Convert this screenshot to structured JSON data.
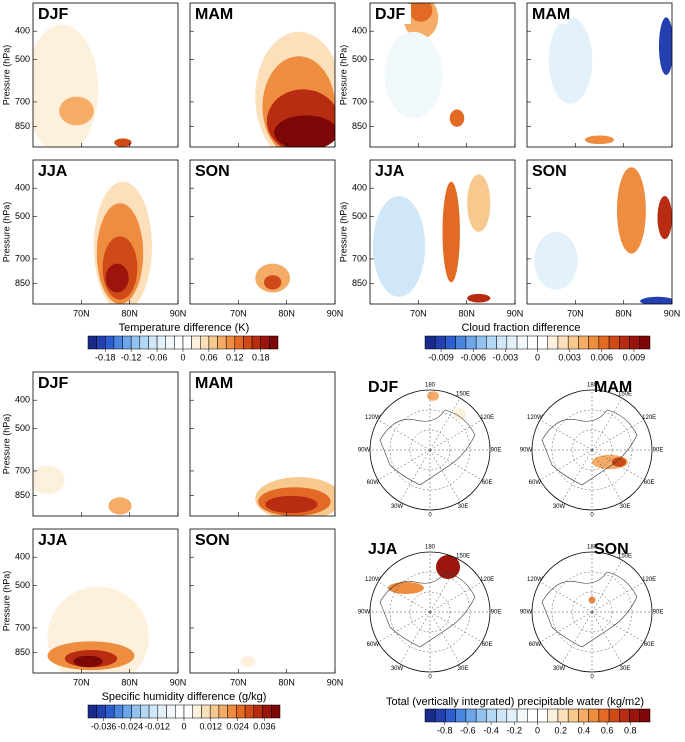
{
  "pressure_axis": {
    "label": "Pressure (hPa)",
    "ticks": [
      400,
      500,
      700,
      850
    ],
    "lim": [
      1000,
      320
    ],
    "log": true
  },
  "lat_axis": {
    "ticks": [
      {
        "value": 70,
        "label": "70N"
      },
      {
        "value": 80,
        "label": "80N"
      },
      {
        "value": 90,
        "label": "90N"
      }
    ],
    "lim": [
      60,
      90
    ]
  },
  "palette": [
    "#1a2a8a",
    "#2440b0",
    "#2d5fd0",
    "#4a85e0",
    "#6ea6ea",
    "#92c2f0",
    "#b3d8f5",
    "#cfe7f8",
    "#e2f1fa",
    "#f0f8fc",
    "#ffffff",
    "#ffffff",
    "#fdf1dd",
    "#fbe0bb",
    "#f8c98f",
    "#f4ac66",
    "#ee8c3f",
    "#e26a24",
    "#d04a18",
    "#b82c12",
    "#9c150c",
    "#7d0606"
  ],
  "profile_groups": [
    {
      "title": "Temperature difference (K)",
      "panels": [
        "DJF",
        "MAM",
        "JJA",
        "SON"
      ],
      "cbar_lim": [
        -0.22,
        0.22
      ],
      "cbar_ticks": [
        -0.18,
        -0.12,
        -0.06,
        0,
        0.06,
        0.12,
        0.18
      ]
    },
    {
      "title": "Cloud fraction difference",
      "panels": [
        "DJF",
        "MAM",
        "JJA",
        "SON"
      ],
      "cbar_lim": [
        -0.0105,
        0.0105
      ],
      "cbar_ticks": [
        -0.009,
        -0.006,
        -0.003,
        0,
        0.003,
        0.006,
        0.009
      ]
    },
    {
      "title": "Specific humidity difference (g/kg)",
      "panels": [
        "DJF",
        "MAM",
        "JJA",
        "SON"
      ],
      "cbar_lim": [
        -0.043,
        0.043
      ],
      "cbar_ticks": [
        -0.036,
        -0.024,
        -0.012,
        0,
        0.012,
        0.024,
        0.036
      ]
    }
  ],
  "map_group": {
    "title": "Total (vertically integrated) precipitable water (kg/m2)",
    "panels": [
      "DJF",
      "MAM",
      "JJA",
      "SON"
    ],
    "lon_labels": [
      {
        "value": 180,
        "label": "180"
      },
      {
        "value": 150,
        "label": "150E"
      },
      {
        "value": 120,
        "label": "120E"
      },
      {
        "value": 90,
        "label": "90E"
      },
      {
        "value": 60,
        "label": "60E"
      },
      {
        "value": 30,
        "label": "30E"
      },
      {
        "value": 0,
        "label": "0"
      },
      {
        "value": -30,
        "label": "30W"
      },
      {
        "value": -60,
        "label": "60W"
      },
      {
        "value": -90,
        "label": "90W"
      },
      {
        "value": -120,
        "label": "120W"
      }
    ],
    "cbar_lim": [
      -0.97,
      0.97
    ],
    "cbar_ticks": [
      -0.8,
      -0.6,
      -0.4,
      -0.2,
      0,
      0.2,
      0.4,
      0.6,
      0.8
    ]
  }
}
